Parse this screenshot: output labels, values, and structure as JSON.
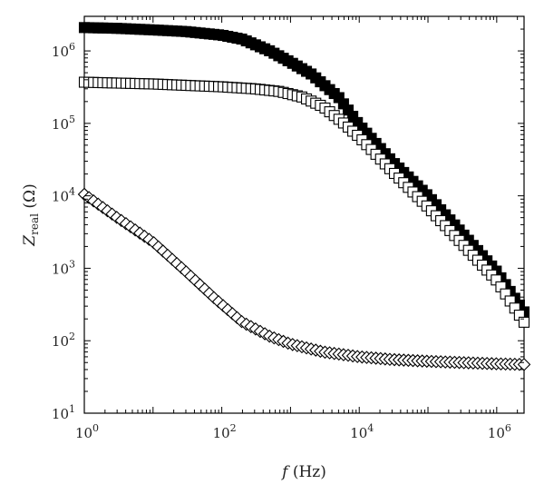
{
  "chart_data": {
    "type": "scatter",
    "xscale": "log",
    "yscale": "log",
    "xlim": [
      1,
      2500000
    ],
    "ylim": [
      10,
      3000000
    ],
    "grid": false,
    "legend": "none",
    "title": "",
    "xlabel": {
      "var": "f",
      "unit": " (Hz)"
    },
    "ylabel": {
      "var": "Z",
      "sub": "real",
      "unit": " (Ω)"
    },
    "xticks": [
      {
        "value": 1,
        "base": "10",
        "exp": "0"
      },
      {
        "value": 100,
        "base": "10",
        "exp": "2"
      },
      {
        "value": 10000,
        "base": "10",
        "exp": "4"
      },
      {
        "value": 1000000,
        "base": "10",
        "exp": "6"
      }
    ],
    "yticks": [
      {
        "value": 10,
        "base": "10",
        "exp": "1"
      },
      {
        "value": 100,
        "base": "10",
        "exp": "2"
      },
      {
        "value": 1000,
        "base": "10",
        "exp": "3"
      },
      {
        "value": 10000,
        "base": "10",
        "exp": "4"
      },
      {
        "value": 100000,
        "base": "10",
        "exp": "5"
      },
      {
        "value": 1000000,
        "base": "10",
        "exp": "6"
      }
    ],
    "series": [
      {
        "marker": "filled-square",
        "color": "#000000",
        "points": [
          [
            1,
            2100000
          ],
          [
            3,
            2050000
          ],
          [
            10,
            1950000
          ],
          [
            30,
            1850000
          ],
          [
            100,
            1650000
          ],
          [
            200,
            1450000
          ],
          [
            500,
            1000000
          ],
          [
            1000,
            700000
          ],
          [
            2000,
            480000
          ],
          [
            5000,
            230000
          ],
          [
            10000,
            95000
          ],
          [
            30000,
            30000
          ],
          [
            100000,
            10000
          ],
          [
            300000,
            3200
          ],
          [
            1000000,
            900
          ],
          [
            2500000,
            250
          ]
        ]
      },
      {
        "marker": "open-square",
        "color": "#000000",
        "points": [
          [
            1,
            370000
          ],
          [
            3,
            360000
          ],
          [
            10,
            350000
          ],
          [
            30,
            335000
          ],
          [
            100,
            320000
          ],
          [
            300,
            300000
          ],
          [
            700,
            275000
          ],
          [
            1500,
            230000
          ],
          [
            3000,
            170000
          ],
          [
            6000,
            100000
          ],
          [
            10000,
            65000
          ],
          [
            30000,
            22000
          ],
          [
            100000,
            7000
          ],
          [
            300000,
            2300
          ],
          [
            1000000,
            680
          ],
          [
            2500000,
            180
          ]
        ]
      },
      {
        "marker": "open-diamond",
        "color": "#000000",
        "points": [
          [
            1,
            10500
          ],
          [
            3,
            5000
          ],
          [
            10,
            2300
          ],
          [
            30,
            900
          ],
          [
            80,
            380
          ],
          [
            200,
            180
          ],
          [
            500,
            115
          ],
          [
            1000,
            90
          ],
          [
            3000,
            70
          ],
          [
            10000,
            60
          ],
          [
            30000,
            55
          ],
          [
            100000,
            52
          ],
          [
            300000,
            50
          ],
          [
            1000000,
            48
          ],
          [
            2500000,
            47
          ]
        ]
      }
    ]
  }
}
